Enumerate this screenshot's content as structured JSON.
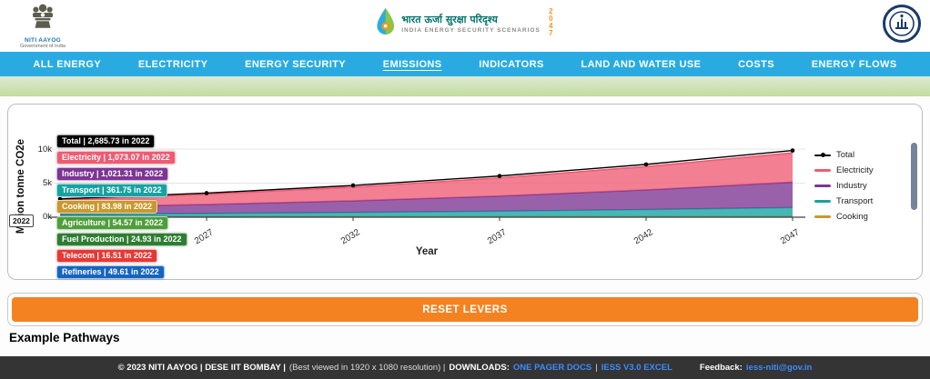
{
  "header": {
    "left_logo": {
      "org": "NITI AAYOG",
      "sub": "Government of India"
    },
    "center_logo": {
      "title_hi": "भारत ऊर्जा सुरक्षा परिदृश्य",
      "title_en": "INDIA ENERGY SECURITY SCENARIOS",
      "year": "2047"
    },
    "right_logo": {
      "name": "IIT Bombay"
    }
  },
  "nav": {
    "items": [
      {
        "label": "ALL ENERGY",
        "active": false
      },
      {
        "label": "ELECTRICITY",
        "active": false
      },
      {
        "label": "ENERGY SECURITY",
        "active": false
      },
      {
        "label": "EMISSIONS",
        "active": true
      },
      {
        "label": "INDICATORS",
        "active": false
      },
      {
        "label": "LAND AND WATER USE",
        "active": false
      },
      {
        "label": "COSTS",
        "active": false
      },
      {
        "label": "ENERGY FLOWS",
        "active": false
      }
    ],
    "bg_color": "#29abe2"
  },
  "chart": {
    "y_axis_label": "Million tonne CO2e",
    "x_axis_label": "Year",
    "y_ticks": [
      "0k",
      "5k",
      "10k"
    ],
    "hover_year_label": "2022",
    "legend": [
      {
        "label": "Total",
        "color": "#000000",
        "type": "line"
      },
      {
        "label": "Electricity",
        "color": "#ef5b73",
        "type": "area"
      },
      {
        "label": "Industry",
        "color": "#7d3594",
        "type": "area"
      },
      {
        "label": "Transport",
        "color": "#16a2a2",
        "type": "area"
      },
      {
        "label": "Cooking",
        "color": "#c9992e",
        "type": "area"
      }
    ],
    "tooltips": [
      {
        "text": "Total | 2,685.73 in 2022",
        "bg": "#000000"
      },
      {
        "text": "Electricity | 1,073.07 in 2022",
        "bg": "#ef5b73"
      },
      {
        "text": "Industry | 1,021.31 in 2022",
        "bg": "#7d3594"
      },
      {
        "text": "Transport | 361.75 in 2022",
        "bg": "#16a2a2"
      },
      {
        "text": "Cooking | 83.98 in 2022",
        "bg": "#c9992e"
      },
      {
        "text": "Agriculture | 54.57 in 2022",
        "bg": "#4f9d3c"
      },
      {
        "text": "Fuel Production | 24.93 in 2022",
        "bg": "#2e7d32"
      },
      {
        "text": "Telecom | 16.51 in 2022",
        "bg": "#e53935"
      },
      {
        "text": "Refineries | 49.61 in 2022",
        "bg": "#1565c0"
      }
    ]
  },
  "chart_data": {
    "type": "area",
    "stacked": true,
    "x": [
      2022,
      2027,
      2032,
      2037,
      2042,
      2047
    ],
    "series": [
      {
        "name": "Electricity",
        "color": "#ef5b73",
        "values": [
          1073.07,
          1480,
          2010,
          2660,
          3420,
          4300
        ]
      },
      {
        "name": "Industry",
        "color": "#7d3594",
        "values": [
          1021.31,
          1315,
          1705,
          2215,
          2880,
          3720
        ]
      },
      {
        "name": "Transport",
        "color": "#16a2a2",
        "values": [
          361.75,
          470,
          610,
          795,
          1025,
          1320
        ]
      },
      {
        "name": "Cooking",
        "color": "#c9992e",
        "values": [
          83.98,
          88,
          92,
          96,
          100,
          104
        ]
      }
    ],
    "total": {
      "name": "Total",
      "color": "#000000",
      "values": [
        2685.73,
        3540,
        4660,
        6050,
        7750,
        9790
      ]
    },
    "others_2022": {
      "Agriculture": 54.57,
      "Fuel Production": 24.93,
      "Telecom": 16.51,
      "Refineries": 49.61
    },
    "title": "",
    "xlabel": "Year",
    "ylabel": "Million tonne CO2e",
    "ylim": [
      0,
      12000
    ],
    "y_tick_values": [
      0,
      5000,
      10000
    ],
    "legend_position": "right",
    "grid": true
  },
  "reset_button": {
    "label": "RESET LEVERS",
    "color": "#f58220"
  },
  "example_pathways_title": "Example Pathways",
  "footer": {
    "copyright": "© 2023 NITI AAYOG | DESE IIT BOMBAY |",
    "note": "(Best viewed in 1920 x 1080 resolution) |",
    "downloads_label": "DOWNLOADS:",
    "link_docs": "ONE PAGER DOCS",
    "separator": "|",
    "link_excel": "IESS V3.0 EXCEL",
    "feedback_label": "Feedback:",
    "feedback_link": "iess-niti@gov.in"
  }
}
